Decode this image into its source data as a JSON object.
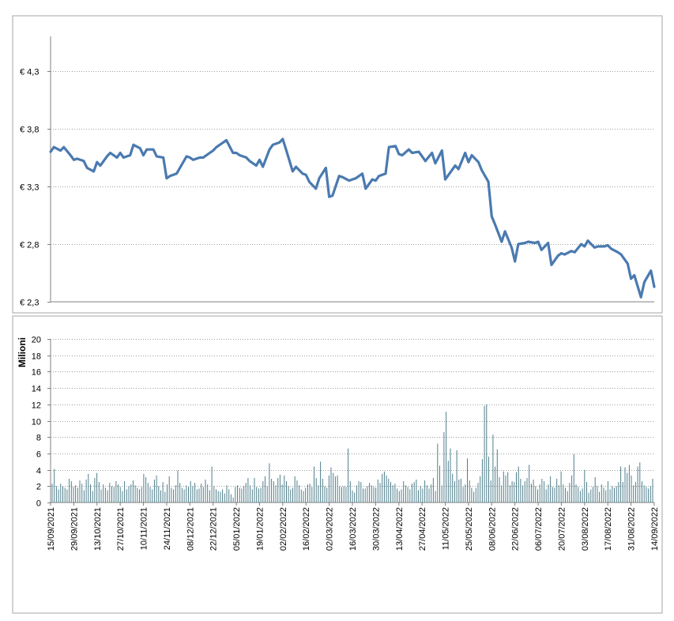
{
  "colors": {
    "price_line": "#4a7ab0",
    "volume_bar": "#4f7f8c",
    "grid": "#808080",
    "panel_border": "#a6a6a6",
    "axis": "#808080"
  },
  "chart_data": [
    {
      "type": "line",
      "title": "",
      "xlabel": "",
      "ylabel": "",
      "ylim": [
        2.3,
        4.6
      ],
      "grid": true,
      "y_ticks": [
        "€ 2,3",
        "€ 2,8",
        "€ 3,3",
        "€ 3,8",
        "€ 4,3"
      ],
      "y_tick_values": [
        2.3,
        2.8,
        3.3,
        3.8,
        4.3
      ],
      "x_start": "15/09/2021",
      "x_end": "14/09/2022",
      "series": [
        {
          "points": [
            [
              "15/09/2021",
              3.6
            ],
            [
              "17/09/2021",
              3.64
            ],
            [
              "21/09/2021",
              3.61
            ],
            [
              "23/09/2021",
              3.64
            ],
            [
              "27/09/2021",
              3.57
            ],
            [
              "29/09/2021",
              3.53
            ],
            [
              "01/10/2021",
              3.54
            ],
            [
              "05/10/2021",
              3.52
            ],
            [
              "07/10/2021",
              3.46
            ],
            [
              "11/10/2021",
              3.43
            ],
            [
              "13/10/2021",
              3.51
            ],
            [
              "15/10/2021",
              3.48
            ],
            [
              "19/10/2021",
              3.56
            ],
            [
              "21/10/2021",
              3.59
            ],
            [
              "25/10/2021",
              3.55
            ],
            [
              "27/10/2021",
              3.59
            ],
            [
              "29/10/2021",
              3.55
            ],
            [
              "02/11/2021",
              3.57
            ],
            [
              "04/11/2021",
              3.66
            ],
            [
              "08/11/2021",
              3.63
            ],
            [
              "10/11/2021",
              3.57
            ],
            [
              "12/11/2021",
              3.62
            ],
            [
              "16/11/2021",
              3.62
            ],
            [
              "18/11/2021",
              3.56
            ],
            [
              "22/11/2021",
              3.55
            ],
            [
              "24/11/2021",
              3.37
            ],
            [
              "26/11/2021",
              3.39
            ],
            [
              "30/11/2021",
              3.41
            ],
            [
              "02/12/2021",
              3.46
            ],
            [
              "06/12/2021",
              3.56
            ],
            [
              "08/12/2021",
              3.55
            ],
            [
              "10/12/2021",
              3.53
            ],
            [
              "14/12/2021",
              3.55
            ],
            [
              "16/12/2021",
              3.55
            ],
            [
              "20/12/2021",
              3.59
            ],
            [
              "22/12/2021",
              3.61
            ],
            [
              "24/12/2021",
              3.64
            ],
            [
              "28/12/2021",
              3.68
            ],
            [
              "30/12/2021",
              3.7
            ],
            [
              "03/01/2022",
              3.59
            ],
            [
              "05/01/2022",
              3.59
            ],
            [
              "07/01/2022",
              3.57
            ],
            [
              "11/01/2022",
              3.55
            ],
            [
              "13/01/2022",
              3.52
            ],
            [
              "17/01/2022",
              3.48
            ],
            [
              "19/01/2022",
              3.53
            ],
            [
              "21/01/2022",
              3.47
            ],
            [
              "25/01/2022",
              3.62
            ],
            [
              "27/01/2022",
              3.66
            ],
            [
              "31/01/2022",
              3.68
            ],
            [
              "02/02/2022",
              3.71
            ],
            [
              "04/02/2022",
              3.62
            ],
            [
              "08/02/2022",
              3.43
            ],
            [
              "10/02/2022",
              3.47
            ],
            [
              "14/02/2022",
              3.41
            ],
            [
              "16/02/2022",
              3.4
            ],
            [
              "18/02/2022",
              3.34
            ],
            [
              "22/02/2022",
              3.28
            ],
            [
              "24/02/2022",
              3.37
            ],
            [
              "28/02/2022",
              3.46
            ],
            [
              "02/03/2022",
              3.21
            ],
            [
              "04/03/2022",
              3.22
            ],
            [
              "08/03/2022",
              3.39
            ],
            [
              "10/03/2022",
              3.38
            ],
            [
              "14/03/2022",
              3.35
            ],
            [
              "16/03/2022",
              3.36
            ],
            [
              "18/03/2022",
              3.37
            ],
            [
              "22/03/2022",
              3.41
            ],
            [
              "24/03/2022",
              3.28
            ],
            [
              "28/03/2022",
              3.36
            ],
            [
              "30/03/2022",
              3.35
            ],
            [
              "01/04/2022",
              3.39
            ],
            [
              "05/04/2022",
              3.41
            ],
            [
              "07/04/2022",
              3.64
            ],
            [
              "11/04/2022",
              3.65
            ],
            [
              "13/04/2022",
              3.58
            ],
            [
              "15/04/2022",
              3.57
            ],
            [
              "19/04/2022",
              3.62
            ],
            [
              "21/04/2022",
              3.59
            ],
            [
              "25/04/2022",
              3.6
            ],
            [
              "27/04/2022",
              3.56
            ],
            [
              "29/04/2022",
              3.52
            ],
            [
              "03/05/2022",
              3.59
            ],
            [
              "05/05/2022",
              3.5
            ],
            [
              "09/05/2022",
              3.61
            ],
            [
              "11/05/2022",
              3.36
            ],
            [
              "13/05/2022",
              3.4
            ],
            [
              "17/05/2022",
              3.48
            ],
            [
              "19/05/2022",
              3.45
            ],
            [
              "23/05/2022",
              3.59
            ],
            [
              "25/05/2022",
              3.51
            ],
            [
              "27/05/2022",
              3.57
            ],
            [
              "31/05/2022",
              3.51
            ],
            [
              "02/06/2022",
              3.44
            ],
            [
              "06/06/2022",
              3.34
            ],
            [
              "08/06/2022",
              3.04
            ],
            [
              "10/06/2022",
              2.97
            ],
            [
              "14/06/2022",
              2.82
            ],
            [
              "16/06/2022",
              2.91
            ],
            [
              "20/06/2022",
              2.77
            ],
            [
              "22/06/2022",
              2.65
            ],
            [
              "24/06/2022",
              2.8
            ],
            [
              "28/06/2022",
              2.81
            ],
            [
              "30/06/2022",
              2.82
            ],
            [
              "04/07/2022",
              2.81
            ],
            [
              "06/07/2022",
              2.82
            ],
            [
              "08/07/2022",
              2.75
            ],
            [
              "12/07/2022",
              2.81
            ],
            [
              "14/07/2022",
              2.62
            ],
            [
              "18/07/2022",
              2.7
            ],
            [
              "20/07/2022",
              2.72
            ],
            [
              "22/07/2022",
              2.71
            ],
            [
              "26/07/2022",
              2.74
            ],
            [
              "28/07/2022",
              2.73
            ],
            [
              "01/08/2022",
              2.8
            ],
            [
              "03/08/2022",
              2.78
            ],
            [
              "05/08/2022",
              2.83
            ],
            [
              "09/08/2022",
              2.77
            ],
            [
              "11/08/2022",
              2.78
            ],
            [
              "15/08/2022",
              2.78
            ],
            [
              "17/08/2022",
              2.79
            ],
            [
              "19/08/2022",
              2.76
            ],
            [
              "23/08/2022",
              2.73
            ],
            [
              "25/08/2022",
              2.71
            ],
            [
              "29/08/2022",
              2.63
            ],
            [
              "31/08/2022",
              2.5
            ],
            [
              "02/09/2022",
              2.53
            ],
            [
              "06/09/2022",
              2.34
            ],
            [
              "08/09/2022",
              2.47
            ],
            [
              "12/09/2022",
              2.57
            ],
            [
              "14/09/2022",
              2.43
            ]
          ]
        }
      ]
    },
    {
      "type": "bar",
      "title": "",
      "xlabel": "",
      "ylabel": "Milioni",
      "ylim": [
        0,
        20
      ],
      "grid": true,
      "y_ticks": [
        "0",
        "2",
        "4",
        "6",
        "8",
        "10",
        "12",
        "14",
        "16",
        "18",
        "20"
      ],
      "y_tick_values": [
        0,
        2,
        4,
        6,
        8,
        10,
        12,
        14,
        16,
        18,
        20
      ],
      "x_tick_labels": [
        "15/09/2021",
        "29/09/2021",
        "13/10/2021",
        "27/10/2021",
        "10/11/2021",
        "24/11/2021",
        "08/12/2021",
        "22/12/2021",
        "05/01/2022",
        "19/01/2022",
        "02/02/2022",
        "16/02/2022",
        "02/03/2022",
        "16/03/2022",
        "30/03/2022",
        "13/04/2022",
        "27/04/2022",
        "11/05/2022",
        "25/05/2022",
        "08/06/2022",
        "22/06/2022",
        "06/07/2022",
        "20/07/2022",
        "03/08/2022",
        "17/08/2022",
        "31/08/2022",
        "14/09/2022"
      ],
      "series": [
        {
          "values": [
            2.3,
            4.1,
            2.0,
            1.6,
            2.3,
            2.0,
            1.8,
            1.6,
            2.9,
            2.6,
            1.9,
            2.1,
            1.8,
            2.7,
            2.3,
            1.5,
            2.8,
            3.5,
            2.2,
            1.4,
            3.0,
            3.6,
            2.5,
            1.6,
            2.2,
            1.8,
            1.5,
            2.4,
            2.0,
            1.9,
            2.6,
            2.2,
            1.9,
            1.4,
            2.6,
            1.6,
            2.0,
            2.2,
            2.7,
            2.1,
            1.8,
            1.6,
            1.9,
            3.5,
            3.1,
            2.4,
            1.9,
            1.6,
            2.8,
            3.3,
            2.0,
            1.5,
            2.5,
            1.3,
            2.2,
            3.2,
            1.8,
            1.6,
            2.1,
            3.9,
            2.4,
            1.8,
            1.6,
            2.1,
            1.9,
            2.6,
            2.0,
            2.4,
            1.6,
            1.7,
            2.3,
            1.9,
            2.8,
            2.2,
            1.5,
            4.4,
            2.0,
            1.6,
            1.4,
            1.3,
            1.6,
            1.1,
            2.1,
            1.6,
            1.0,
            0.6,
            1.9,
            2.1,
            1.8,
            1.7,
            2.0,
            2.4,
            3.0,
            2.1,
            1.6,
            3.0,
            1.9,
            1.7,
            1.8,
            2.6,
            3.2,
            2.0,
            4.8,
            2.9,
            2.6,
            2.1,
            3.0,
            3.4,
            2.2,
            3.3,
            2.6,
            2.0,
            1.6,
            1.8,
            3.2,
            2.7,
            2.1,
            1.6,
            1.4,
            1.8,
            2.2,
            2.3,
            1.9,
            4.4,
            3.0,
            2.1,
            5.0,
            2.9,
            2.0,
            1.8,
            3.3,
            4.3,
            3.6,
            3.2,
            3.3,
            2.0,
            1.9,
            2.0,
            1.9,
            6.6,
            2.6,
            1.5,
            1.2,
            2.1,
            2.6,
            2.5,
            1.7,
            1.7,
            2.0,
            2.4,
            2.1,
            1.9,
            1.8,
            2.8,
            2.4,
            3.5,
            3.8,
            3.3,
            2.9,
            2.5,
            2.1,
            2.3,
            1.7,
            1.4,
            1.6,
            2.6,
            2.1,
            1.9,
            1.6,
            2.3,
            2.5,
            2.8,
            1.5,
            2.0,
            1.7,
            2.7,
            2.1,
            1.7,
            2.2,
            3.0,
            1.4,
            7.2,
            4.5,
            2.1,
            8.6,
            11.1,
            5.1,
            6.6,
            3.5,
            2.6,
            6.4,
            2.8,
            2.9,
            1.9,
            2.2,
            5.4,
            2.7,
            1.8,
            1.3,
            1.8,
            2.4,
            3.2,
            5.3,
            11.8,
            12.0,
            5.6,
            2.7,
            8.3,
            4.4,
            6.5,
            3.1,
            2.1,
            3.8,
            3.3,
            3.7,
            2.1,
            2.6,
            2.5,
            3.7,
            4.4,
            2.9,
            2.1,
            2.6,
            3.0,
            4.6,
            2.3,
            2.8,
            2.0,
            1.6,
            2.2,
            2.9,
            2.6,
            1.6,
            2.2,
            3.2,
            1.9,
            1.8,
            2.9,
            2.1,
            3.8,
            2.2,
            1.8,
            1.4,
            2.4,
            3.3,
            5.9,
            2.2,
            1.9,
            1.4,
            1.7,
            4.0,
            2.5,
            1.2,
            1.6,
            1.9,
            3.1,
            2.0,
            1.3,
            2.2,
            1.8,
            1.5,
            2.6,
            1.6,
            2.0,
            1.8,
            2.0,
            2.5,
            4.4,
            2.5,
            4.3,
            3.6,
            4.6,
            3.3,
            2.1,
            2.5,
            4.4,
            4.9,
            2.6,
            2.1,
            1.9,
            1.7,
            2.0,
            2.9
          ]
        }
      ]
    }
  ]
}
